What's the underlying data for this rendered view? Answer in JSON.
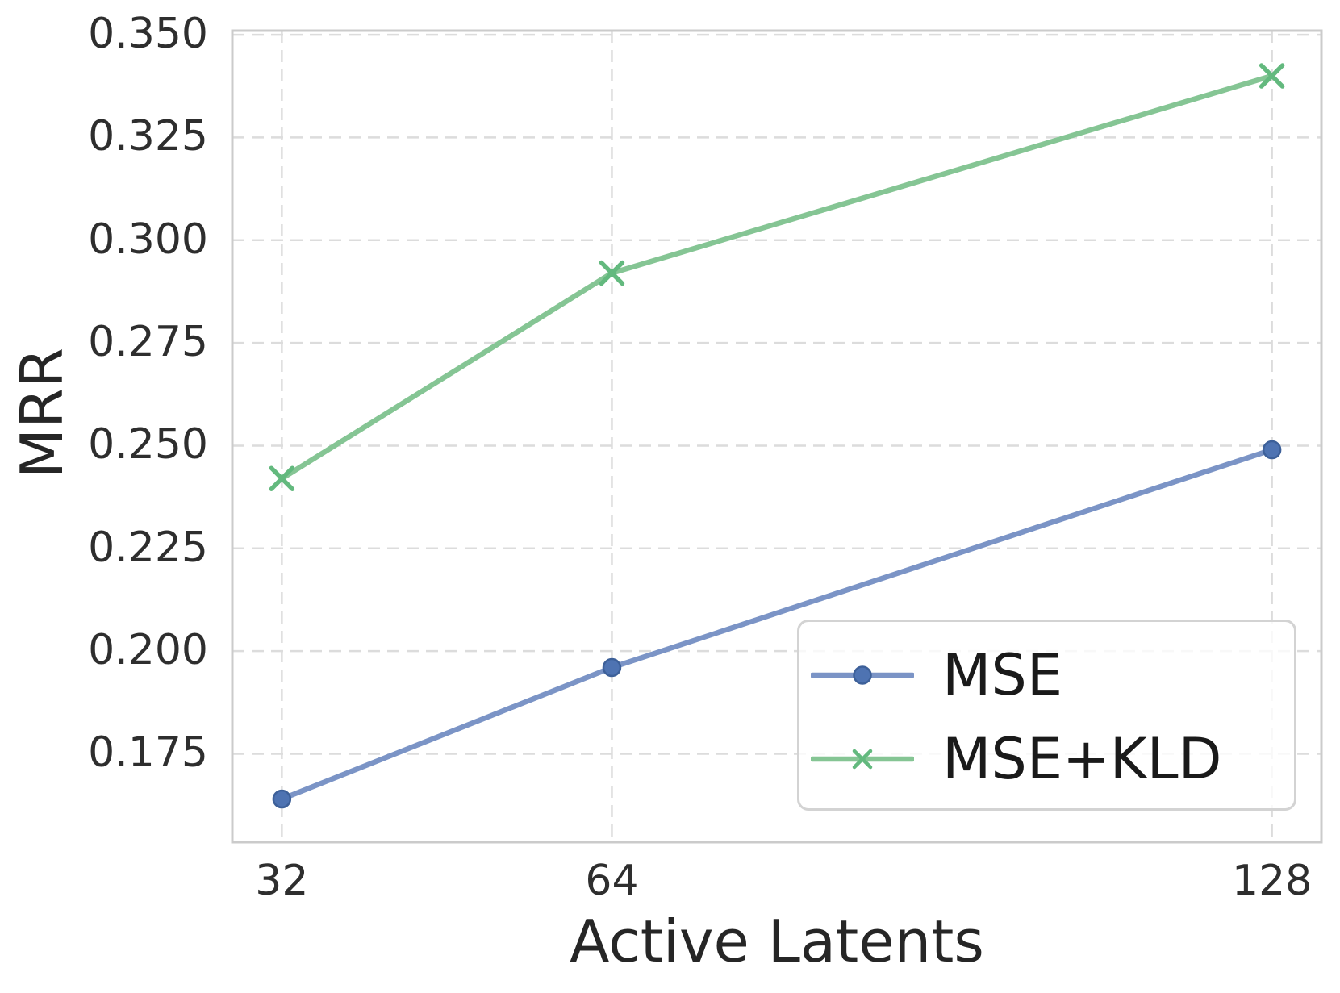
{
  "chart_data": {
    "type": "line",
    "xlabel": "Active Latents",
    "ylabel": "MRR",
    "x": [
      32,
      64,
      128
    ],
    "xtick_labels": [
      "32",
      "64",
      "128"
    ],
    "yticks": [
      0.175,
      0.2,
      0.225,
      0.25,
      0.275,
      0.3,
      0.325,
      0.35
    ],
    "ytick_labels": [
      "0.175",
      "0.200",
      "0.225",
      "0.250",
      "0.275",
      "0.300",
      "0.325",
      "0.350"
    ],
    "xlim": [
      27.2,
      132.8
    ],
    "ylim": [
      0.1535,
      0.351
    ],
    "grid": true,
    "grid_style": "dashed",
    "legend_position": "lower right",
    "series": [
      {
        "name": "MSE",
        "marker": "circle",
        "values": [
          0.164,
          0.196,
          0.249
        ],
        "line_color": "#7b94c6",
        "marker_color": "#4e73b2",
        "marker_edge_color": "#3d6099"
      },
      {
        "name": "MSE+KLD",
        "marker": "x",
        "values": [
          0.242,
          0.292,
          0.34
        ],
        "line_color": "#85c594",
        "marker_color": "#63b97e"
      }
    ],
    "colors": {
      "grid": "#dcdcdc",
      "spine": "#cbcbcb",
      "tick_label": "#2e2e2e",
      "axis_label": "#262626",
      "legend_text": "#1a1a1a",
      "legend_border": "#d3d3d3"
    }
  }
}
